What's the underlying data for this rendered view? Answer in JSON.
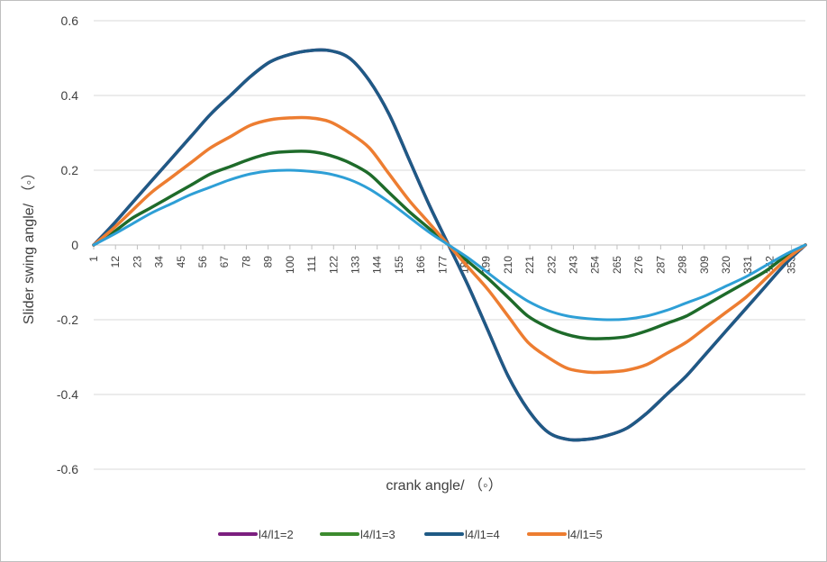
{
  "chart_data": {
    "type": "line",
    "title": "",
    "xlabel": "crank angle/ （◦）",
    "ylabel": "Slider swing angle/ （◦）",
    "ylim": [
      -0.6,
      0.6
    ],
    "y_ticks": [
      0.6,
      0.4,
      0.2,
      0,
      -0.2,
      -0.4,
      -0.6
    ],
    "y_tick_labels": [
      "0.6",
      "0.4",
      "0.2",
      "0",
      "-0.2",
      "-0.4",
      "-0.6"
    ],
    "xlim": [
      1,
      360
    ],
    "x_tick_labels": [
      "1",
      "12",
      "23",
      "34",
      "45",
      "56",
      "67",
      "78",
      "89",
      "100",
      "111",
      "122",
      "133",
      "144",
      "155",
      "166",
      "177",
      "188",
      "199",
      "210",
      "221",
      "232",
      "243",
      "254",
      "265",
      "276",
      "287",
      "298",
      "309",
      "320",
      "331",
      "342",
      "353"
    ],
    "grid": "horizontal",
    "legend_position": "bottom",
    "series": [
      {
        "name": "l4/l1=2",
        "color": "#7B1F7F",
        "x": [
          1,
          10,
          20,
          30,
          40,
          50,
          60,
          70,
          80,
          90,
          100,
          110,
          120,
          130,
          140,
          150,
          160,
          170,
          180,
          190,
          200,
          210,
          220,
          230,
          240,
          250,
          260,
          270,
          280,
          290,
          300,
          310,
          320,
          330,
          340,
          350,
          360
        ],
        "y": [
          0,
          0.05,
          0.11,
          0.17,
          0.23,
          0.29,
          0.35,
          0.4,
          0.45,
          0.49,
          0.51,
          0.52,
          0.52,
          0.5,
          0.44,
          0.35,
          0.23,
          0.11,
          0,
          -0.11,
          -0.23,
          -0.35,
          -0.44,
          -0.5,
          -0.52,
          -0.52,
          -0.51,
          -0.49,
          -0.45,
          -0.4,
          -0.35,
          -0.29,
          -0.23,
          -0.17,
          -0.11,
          -0.05,
          0
        ]
      },
      {
        "name": "l4/l1=3",
        "color": "#1E6B2A",
        "x": [
          1,
          10,
          20,
          30,
          40,
          50,
          60,
          70,
          80,
          90,
          100,
          110,
          120,
          130,
          140,
          150,
          160,
          170,
          180,
          190,
          200,
          210,
          220,
          230,
          240,
          250,
          260,
          270,
          280,
          290,
          300,
          310,
          320,
          330,
          340,
          350,
          360
        ],
        "y": [
          0,
          0.03,
          0.07,
          0.1,
          0.13,
          0.16,
          0.19,
          0.21,
          0.23,
          0.245,
          0.25,
          0.25,
          0.24,
          0.22,
          0.19,
          0.14,
          0.09,
          0.045,
          0,
          -0.045,
          -0.09,
          -0.14,
          -0.19,
          -0.22,
          -0.24,
          -0.25,
          -0.25,
          -0.245,
          -0.23,
          -0.21,
          -0.19,
          -0.16,
          -0.13,
          -0.1,
          -0.07,
          -0.03,
          0
        ]
      },
      {
        "name": "l4/l1=4",
        "color": "#1F5A85",
        "x": [
          1,
          10,
          20,
          30,
          40,
          50,
          60,
          70,
          80,
          90,
          100,
          110,
          120,
          130,
          140,
          150,
          160,
          170,
          180,
          190,
          200,
          210,
          220,
          230,
          240,
          250,
          260,
          270,
          280,
          290,
          300,
          310,
          320,
          330,
          340,
          350,
          360
        ],
        "y": [
          0,
          0.05,
          0.11,
          0.17,
          0.23,
          0.29,
          0.35,
          0.4,
          0.45,
          0.49,
          0.51,
          0.52,
          0.52,
          0.5,
          0.44,
          0.35,
          0.23,
          0.11,
          0,
          -0.11,
          -0.23,
          -0.35,
          -0.44,
          -0.5,
          -0.52,
          -0.52,
          -0.51,
          -0.49,
          -0.45,
          -0.4,
          -0.35,
          -0.29,
          -0.23,
          -0.17,
          -0.11,
          -0.05,
          0
        ]
      },
      {
        "name": "l4/l1=5",
        "color": "#ED7D31",
        "x": [
          1,
          10,
          20,
          30,
          40,
          50,
          60,
          70,
          80,
          90,
          100,
          110,
          120,
          130,
          140,
          150,
          160,
          170,
          180,
          190,
          200,
          210,
          220,
          230,
          240,
          250,
          260,
          270,
          280,
          290,
          300,
          310,
          320,
          330,
          340,
          350,
          360
        ],
        "y": [
          0,
          0.04,
          0.09,
          0.14,
          0.18,
          0.22,
          0.26,
          0.29,
          0.32,
          0.335,
          0.34,
          0.34,
          0.33,
          0.3,
          0.26,
          0.19,
          0.12,
          0.06,
          0,
          -0.06,
          -0.12,
          -0.19,
          -0.26,
          -0.3,
          -0.33,
          -0.34,
          -0.34,
          -0.335,
          -0.32,
          -0.29,
          -0.26,
          -0.22,
          -0.18,
          -0.14,
          -0.09,
          -0.04,
          0
        ]
      },
      {
        "color": "#2E9FD6",
        "x": [
          1,
          10,
          20,
          30,
          40,
          50,
          60,
          70,
          80,
          90,
          100,
          110,
          120,
          130,
          140,
          150,
          160,
          170,
          180,
          190,
          200,
          210,
          220,
          230,
          240,
          250,
          260,
          270,
          280,
          290,
          300,
          310,
          320,
          330,
          340,
          350,
          360
        ],
        "y": [
          0,
          0.025,
          0.055,
          0.085,
          0.11,
          0.135,
          0.155,
          0.175,
          0.19,
          0.198,
          0.2,
          0.197,
          0.19,
          0.175,
          0.15,
          0.115,
          0.075,
          0.035,
          0,
          -0.035,
          -0.075,
          -0.115,
          -0.15,
          -0.175,
          -0.19,
          -0.197,
          -0.2,
          -0.198,
          -0.19,
          -0.175,
          -0.155,
          -0.135,
          -0.11,
          -0.085,
          -0.055,
          -0.025,
          0
        ]
      }
    ],
    "legend": [
      {
        "label": "l4/l1=2",
        "color": "#7B1F7F"
      },
      {
        "label": "l4/l1=3",
        "color": "#3C8B2E"
      },
      {
        "label": "l4/l1=4",
        "color": "#1F5A85"
      },
      {
        "label": "l4/l1=5",
        "color": "#ED7D31"
      }
    ]
  }
}
